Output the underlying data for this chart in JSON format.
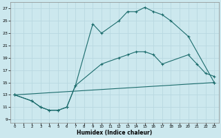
{
  "xlabel": "Humidex (Indice chaleur)",
  "bg_color": "#cce8ee",
  "grid_color": "#b8d8e0",
  "line_color": "#1a6b6b",
  "xlim": [
    -0.5,
    23.5
  ],
  "ylim": [
    8.5,
    28
  ],
  "yticks": [
    9,
    11,
    13,
    15,
    17,
    19,
    21,
    23,
    25,
    27
  ],
  "xticks": [
    0,
    1,
    2,
    3,
    4,
    5,
    6,
    7,
    8,
    9,
    10,
    11,
    12,
    13,
    14,
    15,
    16,
    17,
    18,
    19,
    20,
    21,
    22,
    23
  ],
  "line1_x": [
    0,
    2,
    3,
    4,
    5,
    6,
    7,
    9,
    10,
    12,
    13,
    14,
    15,
    16,
    17,
    18,
    20,
    23
  ],
  "line1_y": [
    13,
    12,
    11,
    10.5,
    10.5,
    11,
    14.5,
    24.5,
    23,
    25,
    26.5,
    26.5,
    27.2,
    26.5,
    26,
    25,
    22.5,
    15
  ],
  "line2_x": [
    0,
    2,
    3,
    4,
    5,
    6,
    7,
    10,
    12,
    13,
    14,
    15,
    16,
    17,
    20,
    21,
    22,
    23
  ],
  "line2_y": [
    13,
    12,
    11,
    10.5,
    10.5,
    11,
    14.5,
    18,
    19,
    19.5,
    20,
    20,
    19.5,
    18,
    19.5,
    18,
    16.5,
    16
  ],
  "line3_x": [
    0,
    23
  ],
  "line3_y": [
    13,
    15
  ]
}
